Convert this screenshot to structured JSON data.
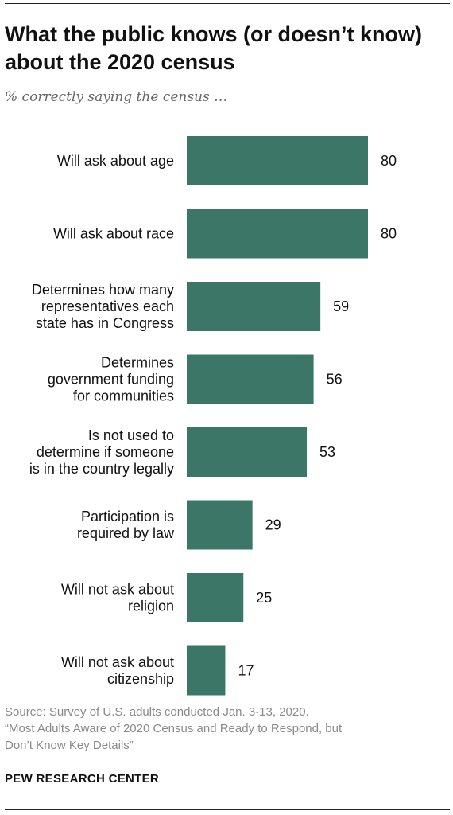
{
  "header": {
    "title": "What the public knows (or doesn’t know) about the 2020 census",
    "subtitle": "% correctly saying the census …"
  },
  "footer": {
    "source_lines": [
      "Source: Survey of U.S. adults conducted Jan. 3-13, 2020.",
      "“Most Adults Aware of 2020 Census and Ready to Respond, but",
      "Don’t Know Key Details”"
    ],
    "brand": "PEW RESEARCH CENTER"
  },
  "chart_data": {
    "type": "bar",
    "orientation": "horizontal",
    "title": "What the public knows (or doesn’t know) about the 2020 census",
    "subtitle": "% correctly saying the census …",
    "categories": [
      [
        "Will ask about age"
      ],
      [
        "Will ask about race"
      ],
      [
        "Determines how many",
        "representatives each",
        "state has in Congress"
      ],
      [
        "Determines",
        "government funding",
        "for communities"
      ],
      [
        "Is not used to",
        "determine if someone",
        "is in the country legally"
      ],
      [
        "Participation is",
        "required by law"
      ],
      [
        "Will not ask about",
        "religion"
      ],
      [
        "Will not ask about",
        "citizenship"
      ]
    ],
    "values": [
      80,
      80,
      59,
      56,
      53,
      29,
      25,
      17
    ],
    "xlim": [
      0,
      100
    ],
    "bar_color": "#3b7667",
    "grid": false,
    "legend": "none",
    "data_labels": true
  }
}
